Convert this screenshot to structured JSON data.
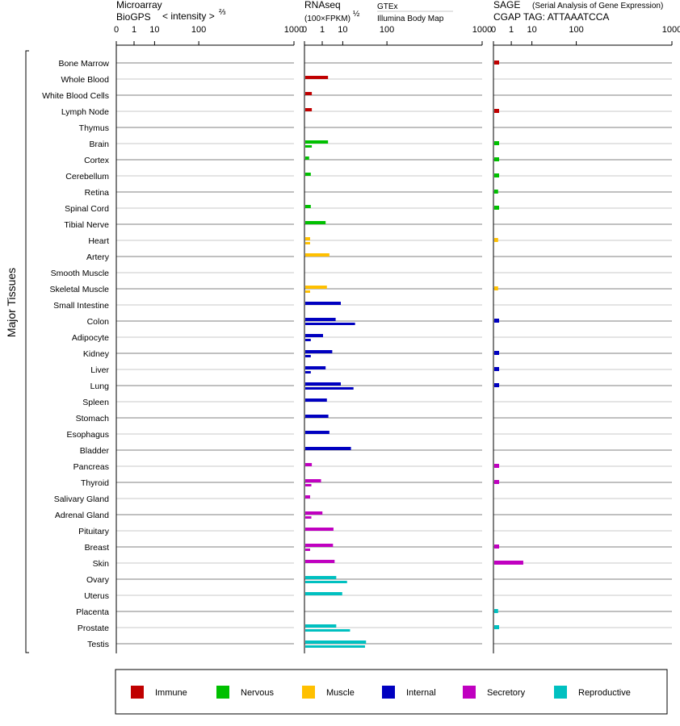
{
  "panels": {
    "microarray": {
      "title": "Microarray",
      "subtitle": "BioGPS",
      "axis_label": "< intensity >",
      "axis_exp": "⅔"
    },
    "rnaseq": {
      "title": "RNAseq",
      "axis_label": "(100×FPKM)",
      "axis_exp": "½",
      "source_gtex": "GTEx",
      "source_ibm": "Illumina Body Map"
    },
    "sage": {
      "title": "SAGE",
      "subtitle": "(Serial Analysis of Gene Expression)",
      "tag": "CGAP TAG: ATTAAATCCA"
    }
  },
  "ticks": [
    "0",
    "1",
    "10",
    "100",
    "1000"
  ],
  "y_title": "Major Tissues",
  "colors": {
    "Immune": "#c00000",
    "Nervous": "#00c000",
    "Muscle": "#ffc000",
    "Internal": "#0000c0",
    "Secretory": "#c000c0",
    "Reproductive": "#00c0c0",
    "gtex_label": "#000080",
    "sage_tag": "#000080"
  },
  "chart_data": {
    "type": "bar",
    "scale": "power",
    "xlim": [
      0,
      1000
    ],
    "tick_values": [
      0,
      1,
      10,
      100,
      1000
    ],
    "categories": [
      "Bone Marrow",
      "Whole Blood",
      "White Blood Cells",
      "Lymph Node",
      "Thymus",
      "Brain",
      "Cortex",
      "Cerebellum",
      "Retina",
      "Spinal Cord",
      "Tibial Nerve",
      "Heart",
      "Artery",
      "Smooth Muscle",
      "Skeletal Muscle",
      "Small Intestine",
      "Colon",
      "Adipocyte",
      "Kidney",
      "Liver",
      "Lung",
      "Spleen",
      "Stomach",
      "Esophagus",
      "Bladder",
      "Pancreas",
      "Thyroid",
      "Salivary Gland",
      "Adrenal Gland",
      "Pituitary",
      "Breast",
      "Skin",
      "Ovary",
      "Uterus",
      "Placenta",
      "Prostate",
      "Testis"
    ],
    "groups": [
      "Immune",
      "Immune",
      "Immune",
      "Immune",
      "Immune",
      "Nervous",
      "Nervous",
      "Nervous",
      "Nervous",
      "Nervous",
      "Nervous",
      "Muscle",
      "Muscle",
      "Muscle",
      "Muscle",
      "Internal",
      "Internal",
      "Internal",
      "Internal",
      "Internal",
      "Internal",
      "Internal",
      "Internal",
      "Internal",
      "Internal",
      "Secretory",
      "Secretory",
      "Secretory",
      "Secretory",
      "Secretory",
      "Secretory",
      "Secretory",
      "Reproductive",
      "Reproductive",
      "Reproductive",
      "Reproductive",
      "Reproductive"
    ],
    "series": [
      {
        "name": "Microarray",
        "values": [
          0,
          0,
          0,
          0,
          0,
          0,
          0,
          0,
          0,
          0,
          0,
          0,
          0,
          0,
          0,
          0,
          0,
          0,
          0,
          0,
          0,
          0,
          0,
          0,
          0,
          0,
          0,
          0,
          0,
          0,
          0,
          0,
          0,
          0,
          0,
          0,
          0
        ]
      },
      {
        "name": "GTEx",
        "values": [
          null,
          2.1,
          0.05,
          0.05,
          null,
          2.1,
          0.01,
          0.03,
          null,
          0.03,
          1.5,
          0.02,
          2.5,
          null,
          1.8,
          8,
          5,
          1,
          3.5,
          1.5,
          8,
          1.8,
          2.2,
          2.5,
          17,
          0.05,
          0.7,
          0.02,
          0.9,
          4,
          3.8,
          4.5,
          5.3,
          9,
          null,
          5.3,
          40
        ]
      },
      {
        "name": "Illumina Body Map",
        "values": [
          null,
          null,
          null,
          null,
          null,
          0.05,
          null,
          null,
          null,
          null,
          null,
          0.02,
          null,
          null,
          0.02,
          null,
          22,
          0.03,
          0.03,
          0.03,
          20,
          null,
          null,
          null,
          null,
          null,
          0.04,
          null,
          0.04,
          null,
          0.02,
          null,
          13,
          null,
          null,
          16,
          38
        ]
      },
      {
        "name": "SAGE",
        "values": [
          0.02,
          null,
          null,
          0.02,
          null,
          0.02,
          0.02,
          0.02,
          0.01,
          0.02,
          null,
          0.01,
          null,
          null,
          0.01,
          null,
          0.02,
          null,
          0.02,
          0.02,
          0.02,
          null,
          null,
          null,
          null,
          0.02,
          0.02,
          null,
          null,
          null,
          0.02,
          4.3,
          null,
          null,
          0.01,
          0.02,
          null
        ]
      }
    ]
  },
  "legend": [
    "Immune",
    "Nervous",
    "Muscle",
    "Internal",
    "Secretory",
    "Reproductive"
  ]
}
